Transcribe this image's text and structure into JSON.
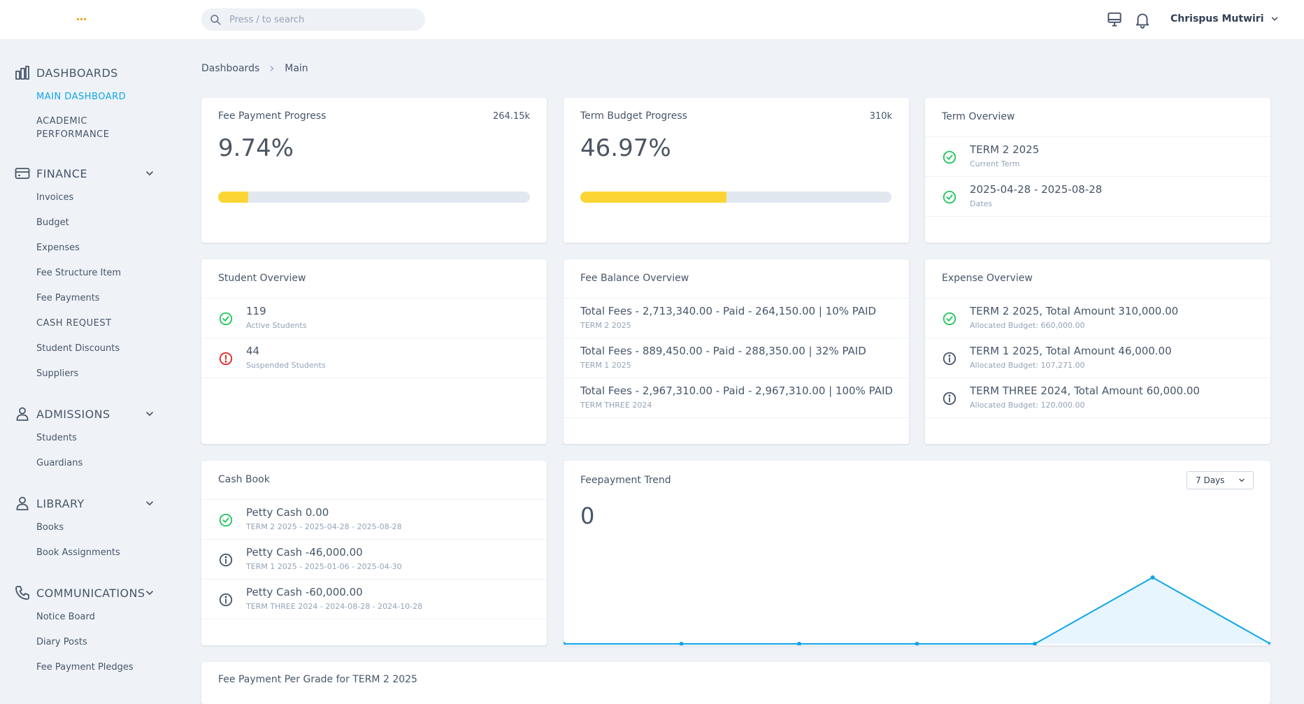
{
  "topbar": {
    "search_placeholder": "Press / to search",
    "user_name": "Chrispus Mutwiri"
  },
  "sidebar": {
    "dashboards": {
      "title": "DASHBOARDS",
      "items": [
        "MAIN DASHBOARD",
        "ACADEMIC",
        "PERFORMANCE"
      ]
    },
    "finance": {
      "title": "FINANCE",
      "items": [
        "Invoices",
        "Budget",
        "Expenses",
        "Fee Structure Item",
        "Fee Payments",
        "CASH REQUEST",
        "Student Discounts",
        "Suppliers"
      ]
    },
    "admissions": {
      "title": "ADMISSIONS",
      "items": [
        "Students",
        "Guardians"
      ]
    },
    "library": {
      "title": "LIBRARY",
      "items": [
        "Books",
        "Book Assignments"
      ]
    },
    "communications": {
      "title": "COMMUNICATIONS",
      "items": [
        "Notice Board",
        "Diary Posts",
        "Fee Payment Pledges"
      ]
    }
  },
  "breadcrumb": {
    "root": "Dashboards",
    "current": "Main"
  },
  "fee_progress": {
    "title": "Fee Payment Progress",
    "total": "264.15k",
    "percent_text": "9.74%",
    "percent": 9.74
  },
  "budget_progress": {
    "title": "Term Budget Progress",
    "total": "310k",
    "percent_text": "46.97%",
    "percent": 46.97
  },
  "term_overview": {
    "title": "Term Overview",
    "items": [
      {
        "main": "TERM 2 2025",
        "sub": "Current Term"
      },
      {
        "main": "2025-04-28 - 2025-08-28",
        "sub": "Dates"
      }
    ]
  },
  "student_overview": {
    "title": "Student Overview",
    "items": [
      {
        "main": "119",
        "sub": "Active Students"
      },
      {
        "main": "44",
        "sub": "Suspended Students"
      }
    ]
  },
  "fee_balance": {
    "title": "Fee Balance Overview",
    "items": [
      {
        "main": "Total Fees - 2,713,340.00 - Paid - 264,150.00 | 10% PAID",
        "sub": "TERM 2 2025"
      },
      {
        "main": "Total Fees - 889,450.00 - Paid - 288,350.00 | 32% PAID",
        "sub": "TERM 1 2025"
      },
      {
        "main": "Total Fees - 2,967,310.00 - Paid - 2,967,310.00 | 100% PAID",
        "sub": "TERM THREE 2024"
      }
    ]
  },
  "expense_overview": {
    "title": "Expense Overview",
    "items": [
      {
        "main": "TERM 2 2025, Total Amount 310,000.00",
        "sub": "Allocated Budget: 660,000.00"
      },
      {
        "main": "TERM 1 2025, Total Amount 46,000.00",
        "sub": "Allocated Budget: 107,271.00"
      },
      {
        "main": "TERM THREE 2024, Total Amount 60,000.00",
        "sub": "Allocated Budget: 120,000.00"
      }
    ]
  },
  "cash_book": {
    "title": "Cash Book",
    "items": [
      {
        "main": "Petty Cash 0.00",
        "sub": "TERM 2 2025 - 2025-04-28 - 2025-08-28"
      },
      {
        "main": "Petty Cash -46,000.00",
        "sub": "TERM 1 2025 - 2025-01-06 - 2025-04-30"
      },
      {
        "main": "Petty Cash -60,000.00",
        "sub": "TERM THREE 2024 - 2024-08-28 - 2024-10-28"
      }
    ]
  },
  "fee_trend": {
    "title": "Feepayment Trend",
    "value": "0",
    "range_label": "7 Days",
    "points": [
      0,
      0,
      0,
      0,
      0,
      1,
      0
    ]
  },
  "per_grade": {
    "title": "Fee Payment Per Grade for TERM 2 2025"
  },
  "colors": {
    "accent": "#0ea5e9",
    "success": "#22c55e",
    "danger": "#dc2626",
    "progress": "#fcd535"
  },
  "icons": {
    "search": "search-icon",
    "monitor": "monitor-icon",
    "bell": "bell-icon",
    "dashboards": "bar-chart-icon",
    "finance": "credit-card-icon",
    "admissions": "user-icon",
    "library": "user-icon",
    "communications": "phone-icon"
  }
}
